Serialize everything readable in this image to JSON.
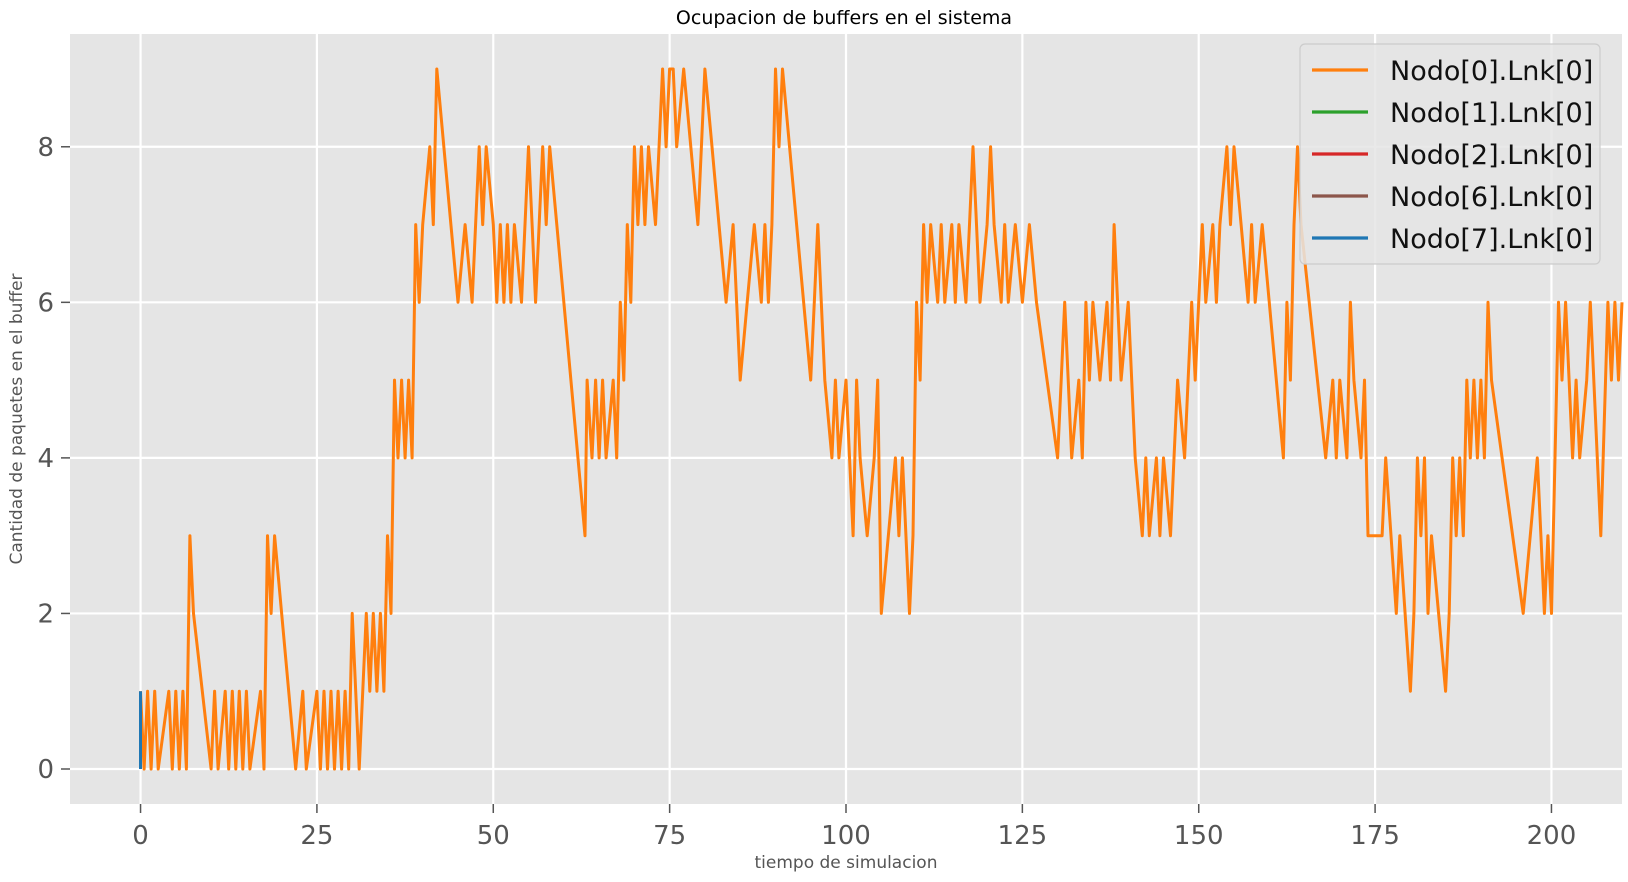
{
  "chart_data": {
    "type": "line",
    "title": "Ocupacion de buffers en el sistema",
    "xlabel": "tiempo de simulacion",
    "ylabel": "Cantidad de paquetes en el buffer",
    "xlim": [
      -10,
      210
    ],
    "ylim": [
      -0.45,
      9.45
    ],
    "xticks": [
      0,
      25,
      50,
      75,
      100,
      125,
      150,
      175,
      200
    ],
    "yticks": [
      0,
      2,
      4,
      6,
      8
    ],
    "grid": true,
    "legend_position": "top-right",
    "colors": {
      "plot_background": "#e5e5e5",
      "grid": "#ffffff"
    },
    "series": [
      {
        "name": "Nodo[0].Lnk[0]",
        "color": "#ff7f0e",
        "points": [
          [
            0,
            1
          ],
          [
            0.5,
            0
          ],
          [
            1,
            1
          ],
          [
            1.5,
            0
          ],
          [
            2,
            1
          ],
          [
            2.5,
            0
          ],
          [
            4,
            1
          ],
          [
            4.5,
            0
          ],
          [
            5,
            1
          ],
          [
            5.5,
            0
          ],
          [
            6,
            1
          ],
          [
            6.5,
            0
          ],
          [
            7,
            3
          ],
          [
            7.5,
            2
          ],
          [
            10,
            0
          ],
          [
            10.5,
            1
          ],
          [
            11,
            0
          ],
          [
            12,
            1
          ],
          [
            12.5,
            0
          ],
          [
            13,
            1
          ],
          [
            13.5,
            0
          ],
          [
            14,
            1
          ],
          [
            14.5,
            0
          ],
          [
            15,
            1
          ],
          [
            15.5,
            0
          ],
          [
            17,
            1
          ],
          [
            17.5,
            0
          ],
          [
            18,
            3
          ],
          [
            18.5,
            2
          ],
          [
            19,
            3
          ],
          [
            21,
            1
          ],
          [
            22,
            0
          ],
          [
            23,
            1
          ],
          [
            23.5,
            0
          ],
          [
            25,
            1
          ],
          [
            25.5,
            0
          ],
          [
            26,
            1
          ],
          [
            26.5,
            0
          ],
          [
            27,
            1
          ],
          [
            27.5,
            0
          ],
          [
            28,
            1
          ],
          [
            28.5,
            0
          ],
          [
            29,
            1
          ],
          [
            29.5,
            0
          ],
          [
            30,
            2
          ],
          [
            30.5,
            1
          ],
          [
            31,
            0
          ],
          [
            32,
            2
          ],
          [
            32.5,
            1
          ],
          [
            33,
            2
          ],
          [
            33.5,
            1
          ],
          [
            34,
            2
          ],
          [
            34.5,
            1
          ],
          [
            35,
            3
          ],
          [
            35.5,
            2
          ],
          [
            36,
            5
          ],
          [
            36.5,
            4
          ],
          [
            37,
            5
          ],
          [
            37.5,
            4
          ],
          [
            38,
            5
          ],
          [
            38.5,
            4
          ],
          [
            39,
            7
          ],
          [
            39.5,
            6
          ],
          [
            40,
            7
          ],
          [
            41,
            8
          ],
          [
            41.5,
            7
          ],
          [
            42,
            9
          ],
          [
            44,
            7
          ],
          [
            45,
            6
          ],
          [
            46,
            7
          ],
          [
            47,
            6
          ],
          [
            47.5,
            7
          ],
          [
            48,
            8
          ],
          [
            48.5,
            7
          ],
          [
            49,
            8
          ],
          [
            50,
            7
          ],
          [
            50.5,
            6
          ],
          [
            51,
            7
          ],
          [
            51.5,
            6
          ],
          [
            52,
            7
          ],
          [
            52.5,
            6
          ],
          [
            53,
            7
          ],
          [
            54,
            6
          ],
          [
            54.5,
            7
          ],
          [
            55,
            8
          ],
          [
            55.5,
            7
          ],
          [
            56,
            6
          ],
          [
            57,
            8
          ],
          [
            57.5,
            7
          ],
          [
            58,
            8
          ],
          [
            59,
            7
          ],
          [
            63,
            3
          ],
          [
            63.3,
            5
          ],
          [
            64,
            4
          ],
          [
            64.5,
            5
          ],
          [
            65,
            4
          ],
          [
            65.5,
            5
          ],
          [
            66,
            4
          ],
          [
            67,
            5
          ],
          [
            67.5,
            4
          ],
          [
            68,
            6
          ],
          [
            68.5,
            5
          ],
          [
            69,
            7
          ],
          [
            69.5,
            6
          ],
          [
            70,
            8
          ],
          [
            70.5,
            7
          ],
          [
            71,
            8
          ],
          [
            71.5,
            7
          ],
          [
            72,
            8
          ],
          [
            73,
            7
          ],
          [
            74,
            9
          ],
          [
            74.5,
            8
          ],
          [
            75,
            9
          ],
          [
            75.5,
            9
          ],
          [
            76,
            8
          ],
          [
            77,
            9
          ],
          [
            78,
            8
          ],
          [
            79,
            7
          ],
          [
            80,
            9
          ],
          [
            81,
            8
          ],
          [
            82,
            7
          ],
          [
            83,
            6
          ],
          [
            84,
            7
          ],
          [
            85,
            5
          ],
          [
            86,
            6
          ],
          [
            87,
            7
          ],
          [
            88,
            6
          ],
          [
            88.5,
            7
          ],
          [
            89,
            6
          ],
          [
            89.5,
            7
          ],
          [
            90,
            9
          ],
          [
            90.5,
            8
          ],
          [
            91,
            9
          ],
          [
            95,
            5
          ],
          [
            95.5,
            6
          ],
          [
            96,
            7
          ],
          [
            97,
            5
          ],
          [
            98,
            4
          ],
          [
            98.5,
            5
          ],
          [
            99,
            4
          ],
          [
            100,
            5
          ],
          [
            101,
            3
          ],
          [
            101.5,
            5
          ],
          [
            102,
            4
          ],
          [
            103,
            3
          ],
          [
            104,
            4
          ],
          [
            104.5,
            5
          ],
          [
            105,
            2
          ],
          [
            107,
            4
          ],
          [
            107.5,
            3
          ],
          [
            108,
            4
          ],
          [
            109,
            2
          ],
          [
            109.5,
            3
          ],
          [
            110,
            6
          ],
          [
            110.5,
            5
          ],
          [
            111,
            7
          ],
          [
            111.5,
            6
          ],
          [
            112,
            7
          ],
          [
            113,
            6
          ],
          [
            113.5,
            7
          ],
          [
            114,
            6
          ],
          [
            115,
            7
          ],
          [
            115.5,
            6
          ],
          [
            116,
            7
          ],
          [
            117,
            6
          ],
          [
            117.5,
            7
          ],
          [
            118,
            8
          ],
          [
            118.5,
            7
          ],
          [
            119,
            6
          ],
          [
            120,
            7
          ],
          [
            120.5,
            8
          ],
          [
            121,
            7
          ],
          [
            122,
            6
          ],
          [
            122.5,
            7
          ],
          [
            123,
            6
          ],
          [
            124,
            7
          ],
          [
            125,
            6
          ],
          [
            126,
            7
          ],
          [
            127,
            6
          ],
          [
            130,
            4
          ],
          [
            130.5,
            5
          ],
          [
            131,
            6
          ],
          [
            131.5,
            5
          ],
          [
            132,
            4
          ],
          [
            133,
            5
          ],
          [
            133.5,
            4
          ],
          [
            134,
            6
          ],
          [
            134.5,
            5
          ],
          [
            135,
            6
          ],
          [
            136,
            5
          ],
          [
            137,
            6
          ],
          [
            137.5,
            5
          ],
          [
            138,
            7
          ],
          [
            139,
            5
          ],
          [
            140,
            6
          ],
          [
            140.5,
            5
          ],
          [
            141,
            4
          ],
          [
            142,
            3
          ],
          [
            142.5,
            4
          ],
          [
            143,
            3
          ],
          [
            144,
            4
          ],
          [
            144.5,
            3
          ],
          [
            145,
            4
          ],
          [
            146,
            3
          ],
          [
            146.5,
            4
          ],
          [
            147,
            5
          ],
          [
            148,
            4
          ],
          [
            148.5,
            5
          ],
          [
            149,
            6
          ],
          [
            149.5,
            5
          ],
          [
            150,
            6
          ],
          [
            150.5,
            7
          ],
          [
            151,
            6
          ],
          [
            152,
            7
          ],
          [
            152.5,
            6
          ],
          [
            153,
            7
          ],
          [
            154,
            8
          ],
          [
            154.5,
            7
          ],
          [
            155,
            8
          ],
          [
            156,
            7
          ],
          [
            157,
            6
          ],
          [
            157.5,
            7
          ],
          [
            158,
            6
          ],
          [
            159,
            7
          ],
          [
            162,
            4
          ],
          [
            162.5,
            6
          ],
          [
            163,
            5
          ],
          [
            163.5,
            7
          ],
          [
            164,
            8
          ],
          [
            164.5,
            7
          ],
          [
            168,
            4
          ],
          [
            169,
            5
          ],
          [
            169.5,
            4
          ],
          [
            170,
            5
          ],
          [
            171,
            4
          ],
          [
            171.5,
            6
          ],
          [
            172,
            5
          ],
          [
            173,
            4
          ],
          [
            173.5,
            5
          ],
          [
            174,
            3
          ],
          [
            176,
            3
          ],
          [
            176.5,
            4
          ],
          [
            178,
            2
          ],
          [
            178.5,
            3
          ],
          [
            180,
            1
          ],
          [
            180.5,
            2
          ],
          [
            181,
            4
          ],
          [
            181.5,
            3
          ],
          [
            182,
            4
          ],
          [
            182.5,
            2
          ],
          [
            183,
            3
          ],
          [
            184,
            2
          ],
          [
            185,
            1
          ],
          [
            185.5,
            2
          ],
          [
            186,
            4
          ],
          [
            186.5,
            3
          ],
          [
            187,
            4
          ],
          [
            187.5,
            3
          ],
          [
            188,
            5
          ],
          [
            188.5,
            4
          ],
          [
            189,
            5
          ],
          [
            189.5,
            4
          ],
          [
            190,
            5
          ],
          [
            190.5,
            4
          ],
          [
            191,
            6
          ],
          [
            191.5,
            5
          ],
          [
            196,
            2
          ],
          [
            198,
            4
          ],
          [
            198.5,
            3
          ],
          [
            199,
            2
          ],
          [
            199.5,
            3
          ],
          [
            200,
            2
          ],
          [
            201,
            6
          ],
          [
            201.5,
            5
          ],
          [
            202,
            6
          ],
          [
            203,
            4
          ],
          [
            203.5,
            5
          ],
          [
            204,
            4
          ],
          [
            205,
            5
          ],
          [
            205.5,
            6
          ],
          [
            206,
            5
          ],
          [
            207,
            3
          ],
          [
            208,
            6
          ],
          [
            208.5,
            5
          ],
          [
            209,
            6
          ],
          [
            209.5,
            5
          ],
          [
            210,
            6
          ]
        ]
      },
      {
        "name": "Nodo[1].Lnk[0]",
        "color": "#2ca02c",
        "points": []
      },
      {
        "name": "Nodo[2].Lnk[0]",
        "color": "#d62728",
        "points": []
      },
      {
        "name": "Nodo[6].Lnk[0]",
        "color": "#8c564b",
        "points": []
      },
      {
        "name": "Nodo[7].Lnk[0]",
        "color": "#1f77b4",
        "points": [
          [
            0,
            0
          ],
          [
            0,
            1
          ]
        ]
      }
    ]
  }
}
